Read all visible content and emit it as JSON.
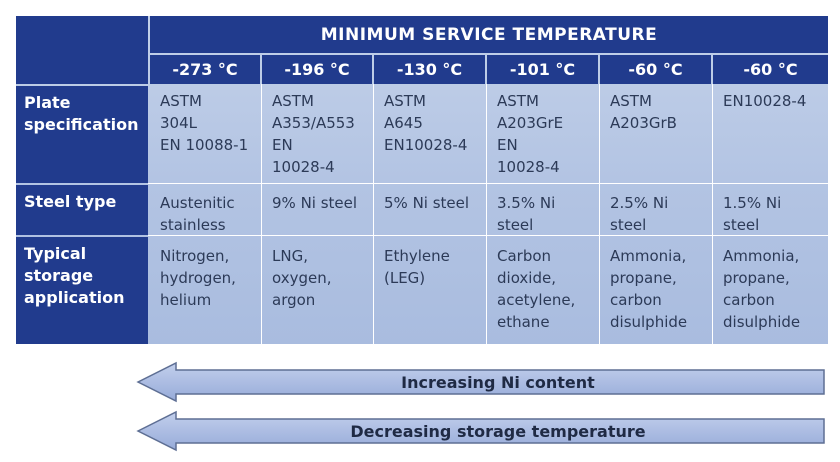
{
  "table": {
    "title": "MINIMUM SERVICE TEMPERATURE",
    "temperatures": [
      "-273 °C",
      "-196 °C",
      "-130 °C",
      "-101 °C",
      "-60 °C",
      "-60 °C"
    ],
    "row_headers": {
      "plate": "Plate\nspecification",
      "steel": "Steel type",
      "typical": "Typical\nstorage\napplication"
    },
    "plate_spec": [
      "ASTM\n304L\nEN 10088-1",
      "ASTM\nA353/A553\nEN\n10028-4",
      "ASTM\nA645\nEN10028-4",
      "ASTM\nA203GrE\nEN\n10028-4",
      "ASTM\nA203GrB",
      "EN10028-4"
    ],
    "steel_type": [
      "Austenitic\nstainless",
      "9% Ni steel",
      "5% Ni steel",
      "3.5% Ni\nsteel",
      "2.5% Ni\nsteel",
      "1.5% Ni\nsteel"
    ],
    "typical_storage": [
      "Nitrogen,\nhydrogen,\nhelium",
      "LNG,\noxygen,\nargon",
      "Ethylene\n(LEG)",
      "Carbon\ndioxide,\nacetylene,\nethane",
      "Ammonia,\npropane,\ncarbon\ndisulphide",
      "Ammonia,\npropane,\ncarbon\ndisulphide"
    ]
  },
  "arrows": {
    "ni_content": "Increasing Ni content",
    "storage_temp": "Decreasing storage temperature"
  },
  "colors": {
    "header_navy": "#213b8d",
    "table_body": "#b6c6e4",
    "arrow_fill": "#a7b8e0"
  }
}
